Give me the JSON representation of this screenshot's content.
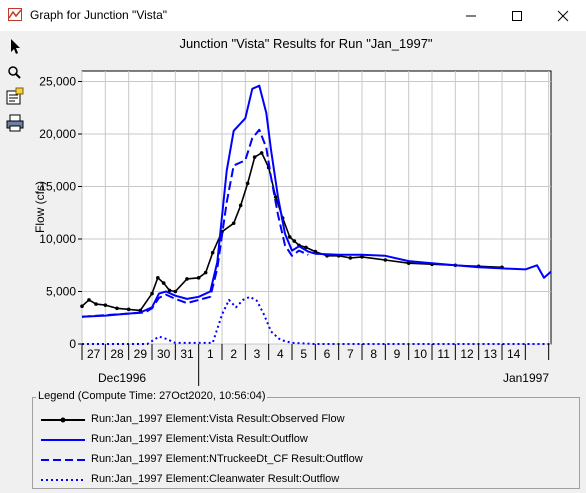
{
  "window": {
    "title": "Graph for Junction \"Vista\""
  },
  "toolbar": {
    "tools": [
      "pointer-icon",
      "zoom-icon",
      "properties-icon",
      "print-icon"
    ]
  },
  "chart_data": {
    "type": "line",
    "title": "Junction \"Vista\" Results for Run \"Jan_1997\"",
    "ylabel": "Flow (cfs)",
    "xlabel": "",
    "ylim": [
      0,
      26000
    ],
    "xlim": [
      0,
      20.1
    ],
    "yticks": [
      0,
      5000,
      10000,
      15000,
      20000,
      25000
    ],
    "ytick_labels": [
      "0",
      "5,000",
      "10,000",
      "15,000",
      "20,000",
      "25,000"
    ],
    "x_day_labels": [
      "27",
      "28",
      "29",
      "30",
      "31",
      "1",
      "2",
      "3",
      "4",
      "5",
      "6",
      "7",
      "8",
      "9",
      "10",
      "11",
      "12",
      "13",
      "14"
    ],
    "x_month_labels": [
      {
        "label": "Dec1996",
        "x": 0
      },
      {
        "label": "Jan1997",
        "x": 20.1
      }
    ],
    "grid": true,
    "series": [
      {
        "name": "Run:Jan_1997 Element:Vista Result:Observed Flow",
        "color": "#000000",
        "style": "solid-marker",
        "x": [
          0,
          0.3,
          0.6,
          1,
          1.5,
          2,
          2.5,
          3,
          3.25,
          3.5,
          3.75,
          4,
          4.5,
          5,
          5.3,
          5.6,
          6,
          6.5,
          6.8,
          7.1,
          7.4,
          7.7,
          8,
          8.3,
          8.6,
          8.9,
          9.1,
          9.3,
          9.6,
          10,
          10.5,
          11,
          11.5,
          12,
          13,
          14,
          15,
          16,
          17,
          18
        ],
        "y": [
          3600,
          4200,
          3800,
          3700,
          3400,
          3300,
          3200,
          4800,
          6300,
          5800,
          5100,
          5000,
          6200,
          6300,
          6800,
          8700,
          10700,
          11500,
          13200,
          15300,
          17800,
          18200,
          16800,
          14000,
          12000,
          10200,
          9800,
          9400,
          9200,
          8800,
          8400,
          8400,
          8200,
          8300,
          8000,
          7700,
          7600,
          7500,
          7400,
          7300
        ]
      },
      {
        "name": "Run:Jan_1997 Element:Vista Result:Outflow",
        "color": "#0000ff",
        "style": "solid",
        "x": [
          0,
          1,
          2,
          2.5,
          3,
          3.3,
          3.6,
          4,
          4.5,
          5,
          5.5,
          5.8,
          6.2,
          6.5,
          7.0,
          7.3,
          7.6,
          7.9,
          8.1,
          8.4,
          8.7,
          9.0,
          9.3,
          9.7,
          10,
          11,
          12,
          13,
          14,
          15,
          16,
          17,
          18,
          19,
          19.5,
          19.8,
          20.1
        ],
        "y": [
          2600,
          2700,
          2900,
          3000,
          3500,
          4800,
          5000,
          4600,
          4300,
          4500,
          5000,
          7800,
          16500,
          20300,
          21500,
          24300,
          24600,
          22000,
          18500,
          14000,
          10500,
          8900,
          9300,
          8800,
          8600,
          8500,
          8500,
          8400,
          7900,
          7700,
          7500,
          7300,
          7200,
          7100,
          7500,
          6300,
          6900
        ]
      },
      {
        "name": "Run:Jan_1997 Element:NTruckeeDt_CF Result:Outflow",
        "color": "#0000ff",
        "style": "dashed",
        "x": [
          0,
          2,
          2.7,
          3,
          3.3,
          3.6,
          4,
          4.5,
          5.5,
          5.8,
          6.2,
          6.5,
          7.0,
          7.3,
          7.6,
          7.9,
          8.1,
          8.4,
          8.7,
          9.0,
          9.3,
          9.7
        ],
        "y": [
          2600,
          2900,
          3000,
          3400,
          4400,
          4700,
          4300,
          3900,
          4500,
          7200,
          13500,
          17000,
          17500,
          19600,
          20400,
          18700,
          15900,
          12300,
          9400,
          8400,
          8900,
          8500
        ]
      },
      {
        "name": "Run:Jan_1997 Element:Cleanwater Result:Outflow",
        "color": "#0000ff",
        "style": "dotted",
        "x": [
          0,
          2.8,
          3.3,
          3.6,
          4,
          5.6,
          6.0,
          6.3,
          6.6,
          6.9,
          7.2,
          7.5,
          7.8,
          8.1,
          8.5,
          9,
          10,
          20.1
        ],
        "y": [
          0,
          0,
          700,
          500,
          100,
          100,
          2800,
          4200,
          3500,
          4200,
          4500,
          4100,
          2800,
          1200,
          400,
          100,
          0,
          0
        ]
      }
    ]
  },
  "legend": {
    "title": "Legend (Compute Time: 27Oct2020, 10:56:04)",
    "entries": [
      "Run:Jan_1997 Element:Vista Result:Observed Flow",
      "Run:Jan_1997 Element:Vista Result:Outflow",
      "Run:Jan_1997 Element:NTruckeeDt_CF Result:Outflow",
      "Run:Jan_1997 Element:Cleanwater Result:Outflow"
    ]
  }
}
